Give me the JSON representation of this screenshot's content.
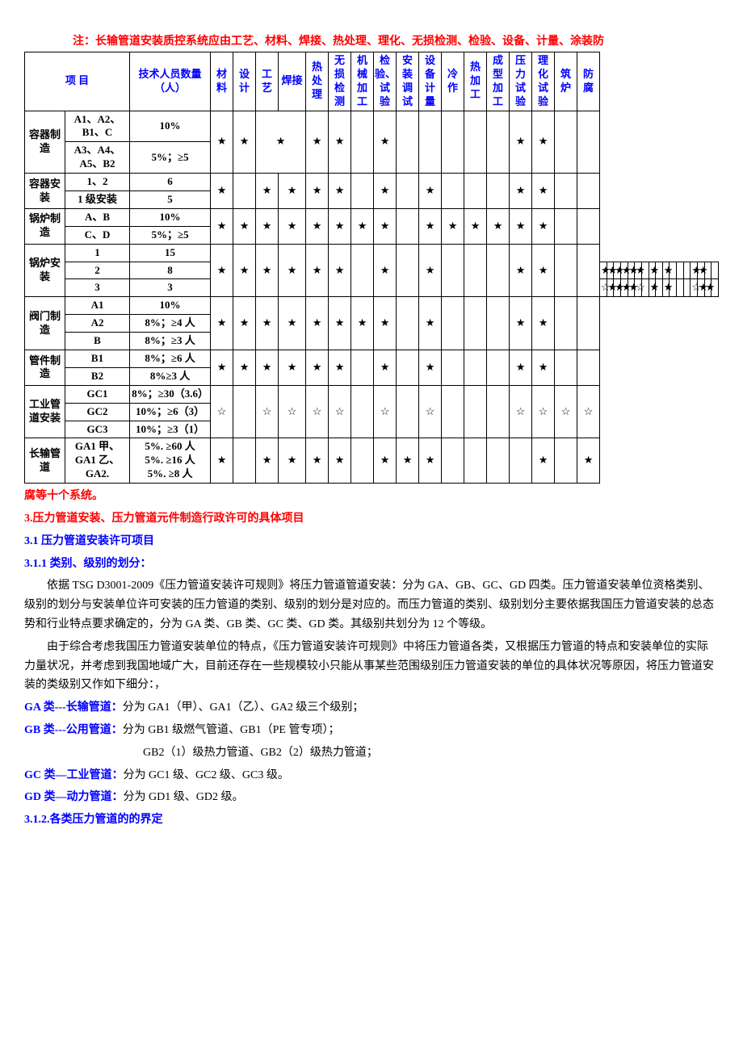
{
  "note_top": "注：长输管道安装质控系统应由工艺、材料、焊接、热处理、理化、无损检测、检验、设备、计量、涂装防",
  "note_bottom": "腐等十个系统。",
  "headers": {
    "item": "项    目",
    "qty": "技术人员数量（人）",
    "cols": [
      "材料",
      "设计",
      "工艺",
      "焊接",
      "热处理",
      "无损检测",
      "机械加工",
      "检验、试验",
      "安装调试",
      "设备计量",
      "冷作",
      "热加工",
      "成型加工",
      "压力试验",
      "理化试验",
      "筑炉",
      "防腐"
    ]
  },
  "rows": [
    {
      "cat": "容器制造",
      "catrows": 2,
      "sub": "A1、A2、B1、C",
      "qty": "10%",
      "sym": [
        "★",
        "★",
        "★",
        "",
        "★",
        "★",
        "",
        "★",
        "",
        "",
        "",
        "",
        "",
        "★",
        "★",
        "",
        ""
      ],
      "merge": [
        [
          "工艺",
          "焊接"
        ]
      ]
    },
    {
      "sub": "A3、A4、A5、B2",
      "qty": "5%；≥5"
    },
    {
      "cat": "容器安装",
      "catrows": 2,
      "sub": "1、2",
      "qty": "6",
      "sym": [
        "★",
        "",
        "★",
        "★",
        "★",
        "★",
        "",
        "★",
        "",
        "★",
        "",
        "",
        "",
        "★",
        "★",
        "",
        ""
      ]
    },
    {
      "sub": "1 级安装",
      "qty": "5"
    },
    {
      "cat": "锅炉制造",
      "catrows": 2,
      "sub": "A、B",
      "qty": "10%",
      "sym": [
        "★",
        "★",
        "★",
        "★",
        "★",
        "★",
        "★",
        "★",
        "",
        "★",
        "★",
        "★",
        "★",
        "★",
        "★",
        "",
        ""
      ]
    },
    {
      "sub": "C、D",
      "qty": "5%；≥5"
    },
    {
      "cat": "锅炉安装",
      "catrows": 3,
      "sub": "1",
      "qty": "15",
      "sym": [
        "★",
        "★",
        "★",
        "★",
        "★",
        "★",
        "",
        "★",
        "",
        "★",
        "",
        "",
        "",
        "★",
        "★",
        "",
        ""
      ]
    },
    {
      "sub": "2",
      "qty": "8",
      "sym": [
        "★",
        "★",
        "★",
        "★",
        "★",
        "★",
        "",
        "★",
        "",
        "★",
        "",
        "",
        "",
        "★",
        "★",
        "",
        ""
      ]
    },
    {
      "sub": "3",
      "qty": "3",
      "sym": [
        "☆",
        "★",
        "★",
        "★",
        "★",
        "☆",
        "",
        "★",
        "",
        "★",
        "",
        "",
        "",
        "☆",
        "★",
        "★",
        ""
      ]
    },
    {
      "cat": "阀门制造",
      "catrows": 3,
      "sub": "A1",
      "qty": "10%",
      "sym": [
        "★",
        "★",
        "★",
        "★",
        "★",
        "★",
        "★",
        "★",
        "",
        "★",
        "",
        "",
        "",
        "★",
        "★",
        "",
        ""
      ]
    },
    {
      "sub": "A2",
      "qty": "8%；≥4 人"
    },
    {
      "sub": "B",
      "qty": "8%；≥3 人"
    },
    {
      "cat": "管件制造",
      "catrows": 2,
      "sub": "B1",
      "qty": "8%；≥6 人",
      "sym": [
        "★",
        "★",
        "★",
        "★",
        "★",
        "★",
        "",
        "★",
        "",
        "★",
        "",
        "",
        "",
        "★",
        "★",
        "",
        ""
      ]
    },
    {
      "sub": "B2",
      "qty": "8%≥3 人"
    },
    {
      "cat": "工业管道安装",
      "catrows": 3,
      "sub": "GC1",
      "qty": "8%；≥30（3.6）",
      "sym": [
        "☆",
        "",
        "☆",
        "☆",
        "☆",
        "☆",
        "",
        "☆",
        "",
        "☆",
        "",
        "",
        "",
        "☆",
        "☆",
        "☆",
        "☆"
      ]
    },
    {
      "sub": "GC2",
      "qty": "10%；≥6（3）"
    },
    {
      "sub": "GC3",
      "qty": "10%；≥3（1）"
    },
    {
      "cat": "长输管道",
      "catrows": 1,
      "sub": "GA1 甲、\nGA1 乙、\nGA2.",
      "qty": "5%.  ≥60 人\n5%.  ≥16 人\n5%.  ≥8 人",
      "sym": [
        "★",
        "",
        "★",
        "★",
        "★",
        "★",
        "",
        "★",
        "★",
        "★",
        "",
        "",
        "",
        "",
        "★",
        "",
        "★"
      ]
    }
  ],
  "para": {
    "s3": "3.压力管道安装、压力管道元件制造行政许可的具体项目",
    "s31": "3.1 压力管道安装许可项目",
    "s311": "3.1.1 类别、级别的划分：",
    "p1": "依据 TSG D3001-2009《压力管道安装许可规则》将压力管道管道安装：分为 GA、GB、GC、GD 四类。压力管道安装单位资格类别、级别的划分与安装单位许可安装的压力管道的类别、级别的划分是对应的。而压力管道的类别、级别划分主要依据我国压力管道安装的总态势和行业特点要求确定的，分为 GA 类、GB 类、GC 类、GD 类。其级别共划分为 12 个等级。",
    "p2": "由于综合考虑我国压力管道安装单位的特点，《压力管道安装许可规则》中将压力管道各类，又根据压力管道的特点和安装单位的实际力量状况，并考虑到我国地域广大，目前还存在一些规模较小只能从事某些范围级别压力管道安装的单位的具体状况等原因，将压力管道安装的类级别又作如下细分：，",
    "ga_l": "GA 类---长输管道：",
    "ga_r": "分为 GA1（甲）、GA1（乙）、GA2 级三个级别；",
    "gb_l": "GB 类---公用管道：",
    "gb_r": "分为 GB1 级燃气管道、GB1（PE 管专项）；",
    "gb2": "GB2（1）级热力管道、GB2（2）级热力管道；",
    "gc_l": "GC 类—工业管道：",
    "gc_r": "分为 GC1 级、GC2 级、GC3 级。",
    "gd_l": "GD 类—动力管道：",
    "gd_r": "分为 GD1 级、GD2 级。",
    "s312": "3.1.2.各类压力管道的的界定"
  },
  "colors": {
    "red": "#ff0000",
    "blue": "#0000ff",
    "black": "#000000",
    "border": "#000000",
    "bg": "#ffffff"
  }
}
